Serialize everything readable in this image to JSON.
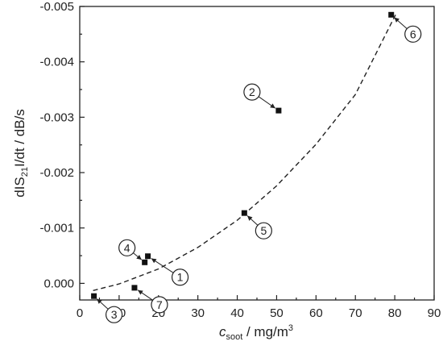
{
  "chart_data": {
    "type": "scatter",
    "title": "",
    "xlabel_main": "c",
    "xlabel_sub": "soot",
    "xlabel_rest": " / mg/m",
    "xlabel_sup": "3",
    "ylabel_pre": "dIS",
    "ylabel_sub": "21",
    "ylabel_post": "I/dt / dB/s",
    "xlim": [
      0,
      90
    ],
    "ylim": [
      0.0003,
      -0.005
    ],
    "y_axis_inverted": true,
    "x_ticks": [
      "0",
      "10",
      "20",
      "30",
      "40",
      "50",
      "60",
      "70",
      "80",
      "90"
    ],
    "x_tick_values": [
      0,
      10,
      20,
      30,
      40,
      50,
      60,
      70,
      80,
      90
    ],
    "y_ticks": [
      "0.000",
      "-0.001",
      "-0.002",
      "-0.003",
      "-0.004",
      "-0.005"
    ],
    "y_tick_values": [
      0,
      -0.001,
      -0.002,
      -0.003,
      -0.004,
      -0.005
    ],
    "grid": false,
    "points": [
      {
        "label": "1",
        "x": 17.3,
        "y": -0.00049
      },
      {
        "label": "2",
        "x": 50.5,
        "y": -0.00312
      },
      {
        "label": "3",
        "x": 3.6,
        "y": 0.00023
      },
      {
        "label": "4",
        "x": 16.5,
        "y": -0.00038
      },
      {
        "label": "5",
        "x": 41.8,
        "y": -0.00127
      },
      {
        "label": "6",
        "x": 79.1,
        "y": -0.00485
      },
      {
        "label": "7",
        "x": 13.9,
        "y": 8e-05
      }
    ],
    "fit_curve": {
      "style": "dashed",
      "x": [
        3.4,
        10,
        20,
        30,
        40,
        50,
        60,
        70,
        80.2
      ],
      "y": [
        0.00013,
        1e-05,
        -0.00026,
        -0.00065,
        -0.00114,
        -0.00176,
        -0.00251,
        -0.00341,
        -0.00485
      ]
    }
  }
}
